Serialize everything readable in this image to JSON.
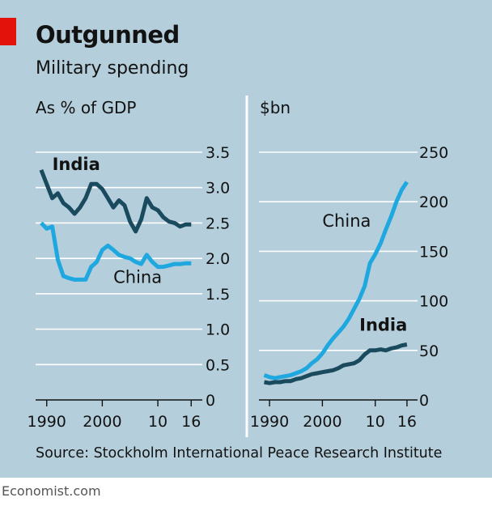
{
  "header": {
    "title": "Outgunned",
    "subtitle": "Military spending",
    "accent_color": "#e3120b"
  },
  "footer": {
    "source": "Source: Stockholm International Peace Research Institute",
    "brand": "Economist.com"
  },
  "colors": {
    "background": "#b4cedb",
    "india": "#1a4a5e",
    "china": "#1fa8df",
    "grid": "#ffffff"
  },
  "chart_data": [
    {
      "type": "line",
      "title": "As % of GDP",
      "x_ticks": [
        "1990",
        "2000",
        "10",
        "16"
      ],
      "x_tick_years": [
        1990,
        2000,
        2010,
        2016
      ],
      "xlim": [
        1988,
        2018
      ],
      "ylim": [
        0,
        3.5
      ],
      "y_ticks": [
        "0",
        "0.5",
        "1.0",
        "1.5",
        "2.0",
        "2.5",
        "3.0",
        "3.5"
      ],
      "y_tick_values": [
        0,
        0.5,
        1.0,
        1.5,
        2.0,
        2.5,
        3.0,
        3.5
      ],
      "grid": true,
      "years": [
        1989,
        1990,
        1991,
        1992,
        1993,
        1994,
        1995,
        1996,
        1997,
        1998,
        1999,
        2000,
        2001,
        2002,
        2003,
        2004,
        2005,
        2006,
        2007,
        2008,
        2009,
        2010,
        2011,
        2012,
        2013,
        2014,
        2015,
        2016
      ],
      "series": [
        {
          "name": "India",
          "label_year": 1991,
          "label_value": 3.25,
          "values": [
            3.25,
            3.05,
            2.85,
            2.92,
            2.78,
            2.72,
            2.63,
            2.72,
            2.85,
            3.05,
            3.05,
            2.98,
            2.85,
            2.72,
            2.82,
            2.75,
            2.52,
            2.38,
            2.55,
            2.85,
            2.72,
            2.68,
            2.58,
            2.52,
            2.5,
            2.45,
            2.48,
            2.48
          ]
        },
        {
          "name": "China",
          "label_year": 2002,
          "label_value": 1.65,
          "values": [
            2.5,
            2.42,
            2.45,
            1.98,
            1.75,
            1.72,
            1.7,
            1.7,
            1.7,
            1.88,
            1.95,
            2.12,
            2.18,
            2.12,
            2.05,
            2.02,
            2.0,
            1.95,
            1.92,
            2.05,
            1.95,
            1.88,
            1.88,
            1.9,
            1.92,
            1.92,
            1.93,
            1.93
          ]
        }
      ]
    },
    {
      "type": "line",
      "title": "$bn",
      "x_ticks": [
        "1990",
        "2000",
        "10",
        "16"
      ],
      "x_tick_years": [
        1990,
        2000,
        2010,
        2016
      ],
      "xlim": [
        1988,
        2018
      ],
      "ylim": [
        0,
        250
      ],
      "y_ticks": [
        "0",
        "50",
        "100",
        "150",
        "200",
        "250"
      ],
      "y_tick_values": [
        0,
        50,
        100,
        150,
        200,
        250
      ],
      "grid": true,
      "years": [
        1989,
        1990,
        1991,
        1992,
        1993,
        1994,
        1995,
        1996,
        1997,
        1998,
        1999,
        2000,
        2001,
        2002,
        2003,
        2004,
        2005,
        2006,
        2007,
        2008,
        2009,
        2010,
        2011,
        2012,
        2013,
        2014,
        2015,
        2016
      ],
      "series": [
        {
          "name": "China",
          "label_year": 2000,
          "label_value": 175,
          "values": [
            25,
            23,
            22,
            23,
            24,
            25,
            27,
            29,
            32,
            37,
            41,
            47,
            55,
            62,
            68,
            74,
            82,
            92,
            102,
            115,
            138,
            147,
            158,
            172,
            185,
            200,
            212,
            220
          ]
        },
        {
          "name": "India",
          "label_year": 2007,
          "label_value": 70,
          "values": [
            18,
            17,
            18,
            18,
            19,
            19,
            21,
            22,
            24,
            26,
            27,
            28,
            29,
            30,
            32,
            35,
            36,
            37,
            40,
            46,
            50,
            50,
            51,
            50,
            52,
            53,
            55,
            56
          ]
        }
      ]
    }
  ]
}
